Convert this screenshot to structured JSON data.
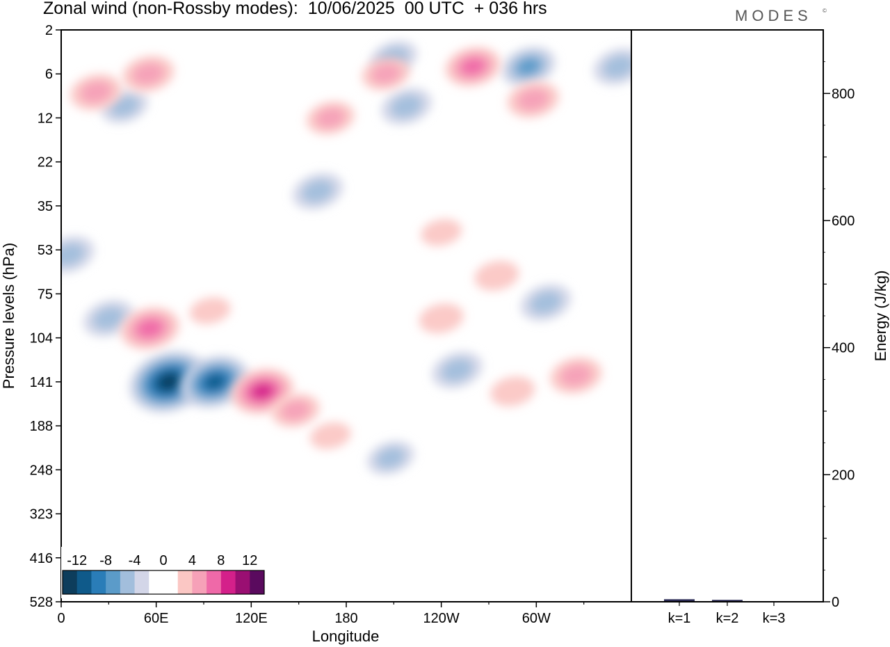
{
  "header": {
    "title": "Zonal wind (non-Rossby modes):  10/06/2025  00 UTC  + 036 hrs",
    "brand": "MODES",
    "brand_mark": "©"
  },
  "chart_data": [
    {
      "type": "heatmap",
      "title": "Zonal wind (non-Rossby modes):  10/06/2025  00 UTC  + 036 hrs",
      "xlabel": "Longitude",
      "ylabel": "Pressure levels (hPa)",
      "x_ticks": [
        "0",
        "60E",
        "120E",
        "180",
        "120W",
        "60W"
      ],
      "x_range_degrees": [
        0,
        360
      ],
      "y_ticks": [
        "2",
        "6",
        "12",
        "22",
        "35",
        "53",
        "75",
        "104",
        "141",
        "188",
        "248",
        "323",
        "416",
        "528"
      ],
      "y_scale": "log, inverted",
      "colorbar": {
        "labels": [
          "-12",
          "-8",
          "-4",
          "0",
          "4",
          "8",
          "12"
        ],
        "levels": [
          -14,
          -12,
          -10,
          -8,
          -6,
          -4,
          -2,
          0,
          2,
          4,
          6,
          8,
          10,
          12,
          14
        ],
        "colors": [
          "#0d3d5c",
          "#0f5a8a",
          "#2a7db8",
          "#5b9bc9",
          "#a2bedc",
          "#d3d6e8",
          "#ffffff",
          "#ffffff",
          "#fbc7c4",
          "#f6a1b8",
          "#ef69a8",
          "#d4208a",
          "#9a0f72",
          "#5a0a5e"
        ]
      },
      "features": [
        {
          "lon": 68,
          "level": 141,
          "value": -14
        },
        {
          "lon": 97,
          "level": 141,
          "value": -11
        },
        {
          "lon": 30,
          "level": 90,
          "value": -6
        },
        {
          "lon": 40,
          "level": 10,
          "value": -5
        },
        {
          "lon": 162,
          "level": 30,
          "value": -6
        },
        {
          "lon": 218,
          "level": 10,
          "value": -6
        },
        {
          "lon": 208,
          "level": 230,
          "value": -5
        },
        {
          "lon": 250,
          "level": 130,
          "value": -6
        },
        {
          "lon": 306,
          "level": 80,
          "value": -6
        },
        {
          "lon": 295,
          "level": 5,
          "value": -7
        },
        {
          "lon": 352,
          "level": 5,
          "value": -6
        },
        {
          "lon": 5,
          "level": 55,
          "value": -6
        },
        {
          "lon": 210,
          "level": 4,
          "value": -5
        },
        {
          "lon": 56,
          "level": 97,
          "value": 8
        },
        {
          "lon": 94,
          "level": 85,
          "value": 3
        },
        {
          "lon": 127,
          "level": 150,
          "value": 9
        },
        {
          "lon": 148,
          "level": 170,
          "value": 5
        },
        {
          "lon": 170,
          "level": 200,
          "value": 3
        },
        {
          "lon": 170,
          "level": 12,
          "value": 5
        },
        {
          "lon": 260,
          "level": 5,
          "value": 7
        },
        {
          "lon": 298,
          "level": 9,
          "value": 6
        },
        {
          "lon": 325,
          "level": 135,
          "value": 6
        },
        {
          "lon": 285,
          "level": 150,
          "value": 4
        },
        {
          "lon": 240,
          "level": 90,
          "value": 4
        },
        {
          "lon": 275,
          "level": 65,
          "value": 4
        },
        {
          "lon": 22,
          "level": 8,
          "value": 6
        },
        {
          "lon": 55,
          "level": 6,
          "value": 6
        },
        {
          "lon": 205,
          "level": 6,
          "value": 5
        },
        {
          "lon": 240,
          "level": 45,
          "value": 3
        }
      ]
    },
    {
      "type": "bar",
      "ylabel": "Energy (J/kg)",
      "categories": [
        "k=1",
        "k=2",
        "k=3"
      ],
      "values": [
        4,
        3,
        1
      ],
      "ylim": [
        0,
        900
      ],
      "y_ticks": [
        "0",
        "200",
        "400",
        "600",
        "800"
      ],
      "bar_color": "#2b2b55"
    }
  ]
}
